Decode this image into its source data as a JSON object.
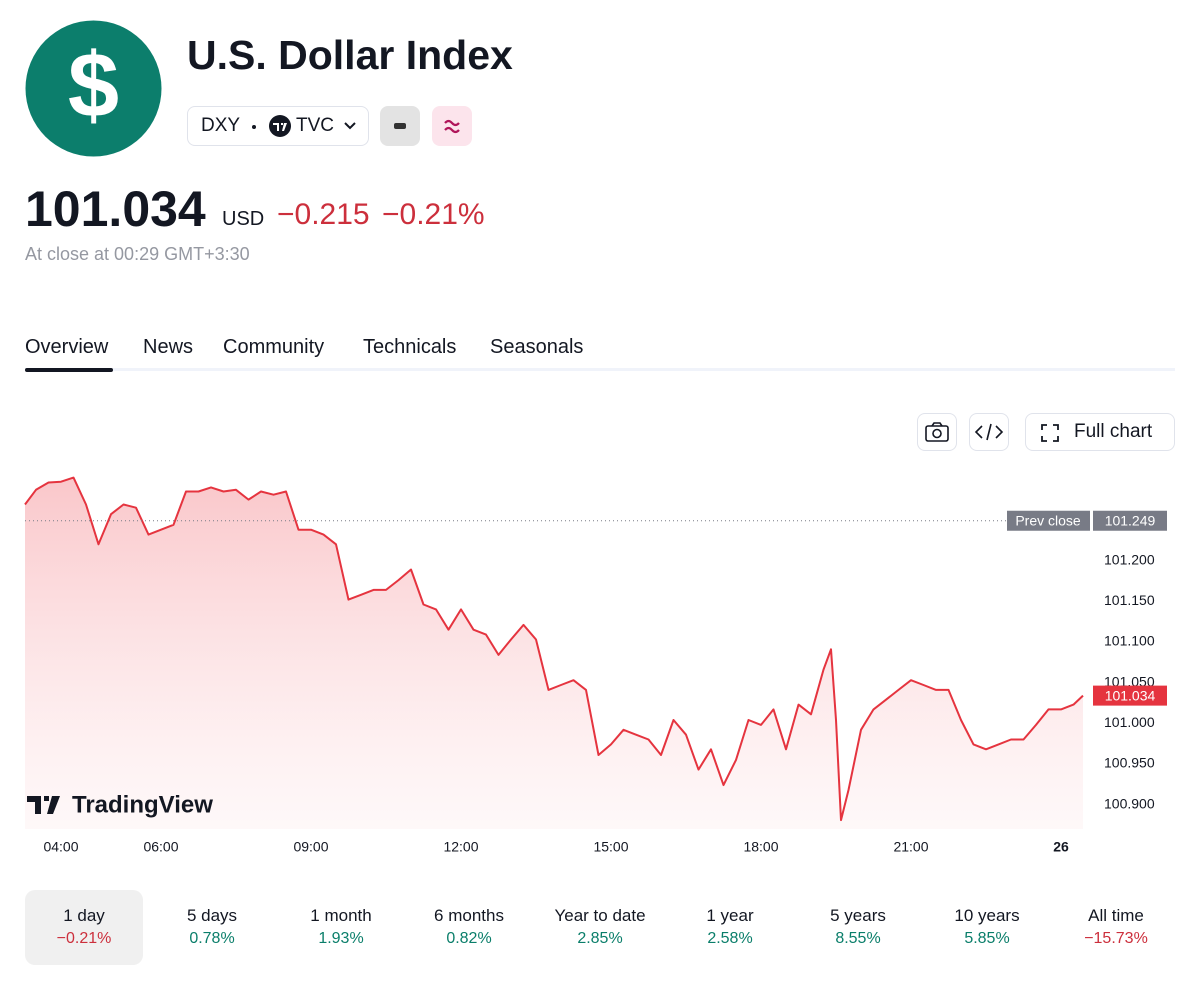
{
  "header": {
    "icon": "$",
    "title": "U.S. Dollar Index",
    "symbol": "DXY",
    "exchange": "TVC"
  },
  "quote": {
    "price": "101.034",
    "currency": "USD",
    "change": "−0.215",
    "change_pct": "−0.21%",
    "status": "At close at 00:29 GMT+3:30"
  },
  "tabs": [
    "Overview",
    "News",
    "Community",
    "Technicals",
    "Seasonals"
  ],
  "toolbar": {
    "full_chart": "Full chart"
  },
  "chart_data": {
    "type": "line",
    "color": "#e5343f",
    "x": [
      3.28,
      3.5,
      3.75,
      4,
      4.25,
      4.5,
      4.75,
      5,
      5.25,
      5.5,
      5.75,
      6,
      6.25,
      6.5,
      6.75,
      7,
      7.25,
      7.5,
      7.75,
      8,
      8.25,
      8.5,
      8.75,
      9,
      9.25,
      9.5,
      9.75,
      10,
      10.25,
      10.5,
      10.75,
      11,
      11.25,
      11.5,
      11.75,
      12,
      12.25,
      12.5,
      12.75,
      13,
      13.25,
      13.5,
      13.75,
      14,
      14.25,
      14.5,
      14.75,
      15,
      15.25,
      15.5,
      15.75,
      16,
      16.25,
      16.5,
      16.75,
      17,
      17.25,
      17.5,
      17.75,
      18,
      18.25,
      18.5,
      18.75,
      19,
      19.25,
      19.4,
      19.5,
      19.6,
      19.75,
      20,
      20.25,
      20.5,
      20.75,
      21,
      21.25,
      21.5,
      21.75,
      22,
      22.25,
      22.5,
      22.75,
      23,
      23.25,
      23.5,
      23.75,
      24,
      24.25,
      24.44
    ],
    "values": [
      101.269,
      101.287,
      101.296,
      101.297,
      101.302,
      101.269,
      101.22,
      101.257,
      101.269,
      101.265,
      101.232,
      101.238,
      101.244,
      101.285,
      101.285,
      101.29,
      101.285,
      101.287,
      101.275,
      101.285,
      101.281,
      101.285,
      101.238,
      101.238,
      101.232,
      101.22,
      101.152,
      101.158,
      101.164,
      101.164,
      101.176,
      101.189,
      101.146,
      101.14,
      101.115,
      101.14,
      101.115,
      101.109,
      101.084,
      101.103,
      101.121,
      101.103,
      101.041,
      101.047,
      101.053,
      101.041,
      100.961,
      100.974,
      100.992,
      100.986,
      100.98,
      100.961,
      101.004,
      100.986,
      100.943,
      100.968,
      100.924,
      100.955,
      101.004,
      100.998,
      101.017,
      100.968,
      101.023,
      101.011,
      101.066,
      101.091,
      101.004,
      100.881,
      100.918,
      100.992,
      101.017,
      101.029,
      101.041,
      101.053,
      101.047,
      101.041,
      101.041,
      101.004,
      100.974,
      100.968,
      100.974,
      100.98,
      100.98,
      100.998,
      101.017,
      101.017,
      101.023,
      101.034
    ],
    "xlim": [
      3.28,
      24.5
    ],
    "xticks": [
      {
        "value": 4,
        "label": "04:00"
      },
      {
        "value": 6,
        "label": "06:00"
      },
      {
        "value": 9,
        "label": "09:00"
      },
      {
        "value": 12,
        "label": "12:00"
      },
      {
        "value": 15,
        "label": "15:00"
      },
      {
        "value": 18,
        "label": "18:00"
      },
      {
        "value": 21,
        "label": "21:00"
      },
      {
        "value": 24,
        "label": "26"
      }
    ],
    "ylim": [
      100.87,
      101.32
    ],
    "yticks": [
      {
        "value": 100.9,
        "label": "100.900"
      },
      {
        "value": 100.95,
        "label": "100.950"
      },
      {
        "value": 101.0,
        "label": "101.000"
      },
      {
        "value": 101.05,
        "label": "101.050"
      },
      {
        "value": 101.1,
        "label": "101.100"
      },
      {
        "value": 101.15,
        "label": "101.150"
      },
      {
        "value": 101.2,
        "label": "101.200"
      }
    ],
    "prev_close_label": "Prev close",
    "prev_close": 101.249,
    "watermark": "TradingView"
  },
  "periods": [
    {
      "label": "1 day",
      "change": "−0.21%"
    },
    {
      "label": "5 days",
      "change": "0.78%"
    },
    {
      "label": "1 month",
      "change": "1.93%"
    },
    {
      "label": "6 months",
      "change": "0.82%"
    },
    {
      "label": "Year to date",
      "change": "2.85%"
    },
    {
      "label": "1 year",
      "change": "2.58%"
    },
    {
      "label": "5 years",
      "change": "8.55%"
    },
    {
      "label": "10 years",
      "change": "5.85%"
    },
    {
      "label": "All time",
      "change": "−15.73%"
    }
  ]
}
